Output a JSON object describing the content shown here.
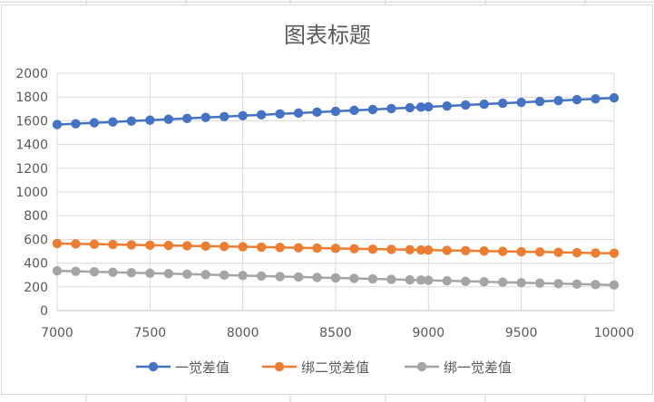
{
  "chart_data": {
    "type": "scatter",
    "title": "图表标题",
    "xlabel": "",
    "ylabel": "",
    "xlim": [
      7000,
      10000
    ],
    "ylim": [
      0,
      2000
    ],
    "x_ticks": [
      7000,
      7500,
      8000,
      8500,
      9000,
      9500,
      10000
    ],
    "y_ticks": [
      0,
      200,
      400,
      600,
      800,
      1000,
      1200,
      1400,
      1600,
      1800,
      2000
    ],
    "grid": true,
    "legend_position": "bottom",
    "series": [
      {
        "name": "一觉差值",
        "color": "#4472C4",
        "x": [
          7000,
          7100,
          7200,
          7300,
          7400,
          7500,
          7600,
          7700,
          7800,
          7900,
          8000,
          8100,
          8200,
          8300,
          8400,
          8500,
          8600,
          8700,
          8800,
          8900,
          8960,
          9000,
          9100,
          9200,
          9300,
          9400,
          9500,
          9600,
          9700,
          9800,
          9900,
          10000
        ],
        "y": [
          1568,
          1575,
          1583,
          1590,
          1598,
          1605,
          1613,
          1620,
          1628,
          1635,
          1643,
          1650,
          1658,
          1665,
          1673,
          1680,
          1688,
          1695,
          1703,
          1710,
          1715,
          1718,
          1725,
          1733,
          1740,
          1748,
          1755,
          1763,
          1770,
          1778,
          1785,
          1793
        ]
      },
      {
        "name": "绑二觉差值",
        "color": "#ED7D31",
        "x": [
          7000,
          7100,
          7200,
          7300,
          7400,
          7500,
          7600,
          7700,
          7800,
          7900,
          8000,
          8100,
          8200,
          8300,
          8400,
          8500,
          8600,
          8700,
          8800,
          8900,
          8960,
          9000,
          9100,
          9200,
          9300,
          9400,
          9500,
          9600,
          9700,
          9800,
          9900,
          10000
        ],
        "y": [
          565,
          562,
          560,
          557,
          554,
          551,
          549,
          546,
          543,
          540,
          538,
          535,
          532,
          529,
          527,
          524,
          521,
          518,
          516,
          513,
          511,
          510,
          507,
          505,
          502,
          499,
          496,
          494,
          491,
          488,
          485,
          483
        ]
      },
      {
        "name": "绑一觉差值",
        "color": "#A5A5A5",
        "x": [
          7000,
          7100,
          7200,
          7300,
          7400,
          7500,
          7600,
          7700,
          7800,
          7900,
          8000,
          8100,
          8200,
          8300,
          8400,
          8500,
          8600,
          8700,
          8800,
          8900,
          8960,
          9000,
          9100,
          9200,
          9300,
          9400,
          9500,
          9600,
          9700,
          9800,
          9900,
          10000
        ],
        "y": [
          335,
          331,
          327,
          323,
          319,
          315,
          311,
          307,
          303,
          299,
          295,
          291,
          287,
          283,
          279,
          275,
          271,
          267,
          263,
          259,
          257,
          255,
          251,
          247,
          243,
          239,
          235,
          231,
          227,
          223,
          219,
          215
        ]
      }
    ]
  }
}
